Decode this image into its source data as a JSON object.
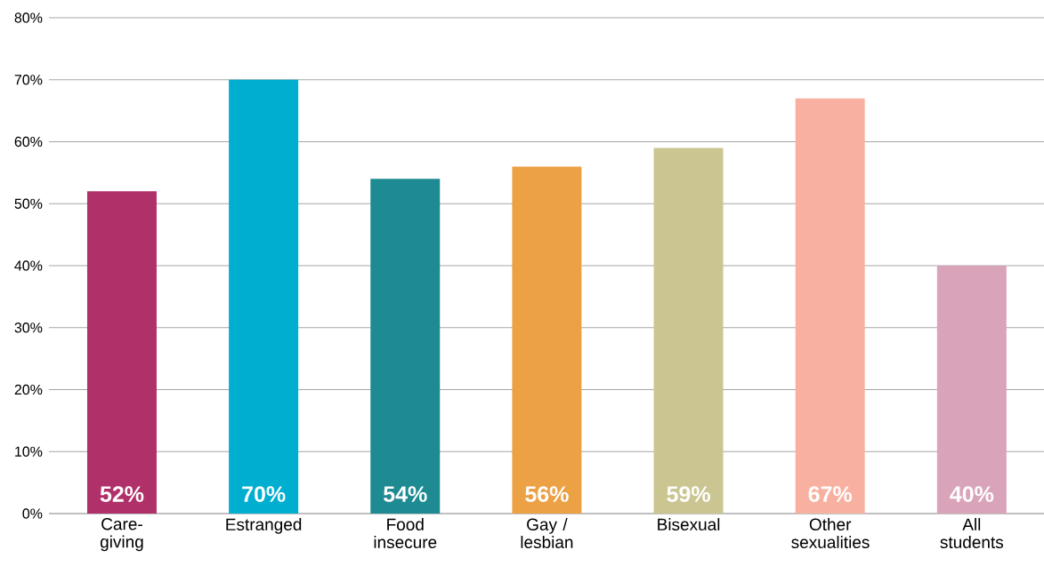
{
  "chart_data": {
    "type": "bar",
    "categories": [
      "Care-giving",
      "Estranged",
      "Food insecure",
      "Gay / lesbian",
      "Bisexual",
      "Other sexualities",
      "All students"
    ],
    "values": [
      52,
      70,
      54,
      56,
      59,
      67,
      40
    ],
    "colors": [
      "#b0306a",
      "#00aed0",
      "#1e8a92",
      "#eca145",
      "#cbc591",
      "#f8b1a1",
      "#d9a4ba"
    ],
    "value_labels": [
      "52%",
      "70%",
      "54%",
      "56%",
      "59%",
      "67%",
      "40%"
    ],
    "ylim": [
      0,
      80
    ],
    "yticks": [
      {
        "value": 0,
        "label": "0%"
      },
      {
        "value": 10,
        "label": "10%"
      },
      {
        "value": 20,
        "label": "20%"
      },
      {
        "value": 30,
        "label": "30%"
      },
      {
        "value": 40,
        "label": "40%"
      },
      {
        "value": 50,
        "label": "50%"
      },
      {
        "value": 60,
        "label": "60%"
      },
      {
        "value": 70,
        "label": "70%"
      },
      {
        "value": 80,
        "label": "80%"
      }
    ],
    "grid": "y"
  }
}
